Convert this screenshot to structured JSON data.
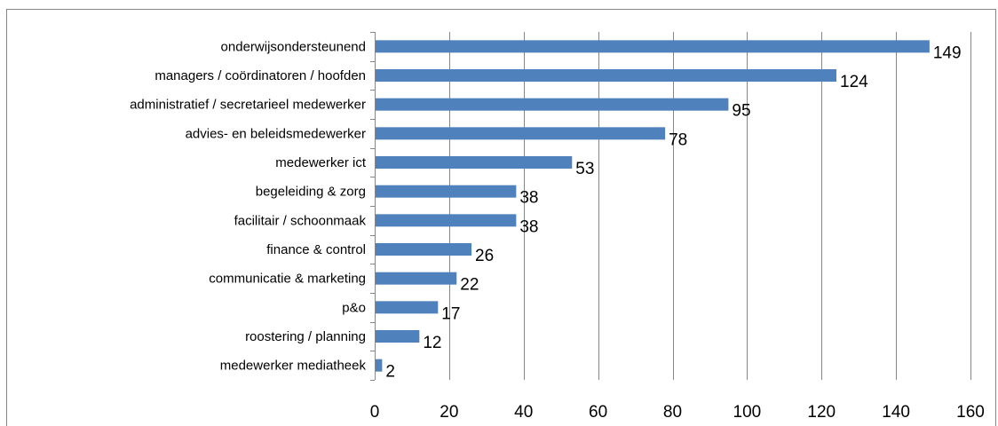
{
  "chart_data": {
    "type": "bar",
    "orientation": "horizontal",
    "categories": [
      "onderwijsondersteunend",
      "managers / coördinatoren / hoofden",
      "administratief / secretarieel medewerker",
      "advies- en beleidsmedewerker",
      "medewerker ict",
      "begeleiding & zorg",
      "facilitair / schoonmaak",
      "finance & control",
      "communicatie & marketing",
      "p&o",
      "roostering / planning",
      "medewerker mediatheek"
    ],
    "values": [
      149,
      124,
      95,
      78,
      53,
      38,
      38,
      26,
      22,
      17,
      12,
      2
    ],
    "xlim": [
      0,
      160
    ],
    "x_ticks": [
      0,
      20,
      40,
      60,
      80,
      100,
      120,
      140,
      160
    ],
    "grid": "vertical",
    "data_labels": true,
    "title": "",
    "xlabel": "",
    "ylabel": "",
    "colors": {
      "bar": "#4f81bd",
      "gridline": "#868686",
      "frame": "#868686"
    }
  }
}
